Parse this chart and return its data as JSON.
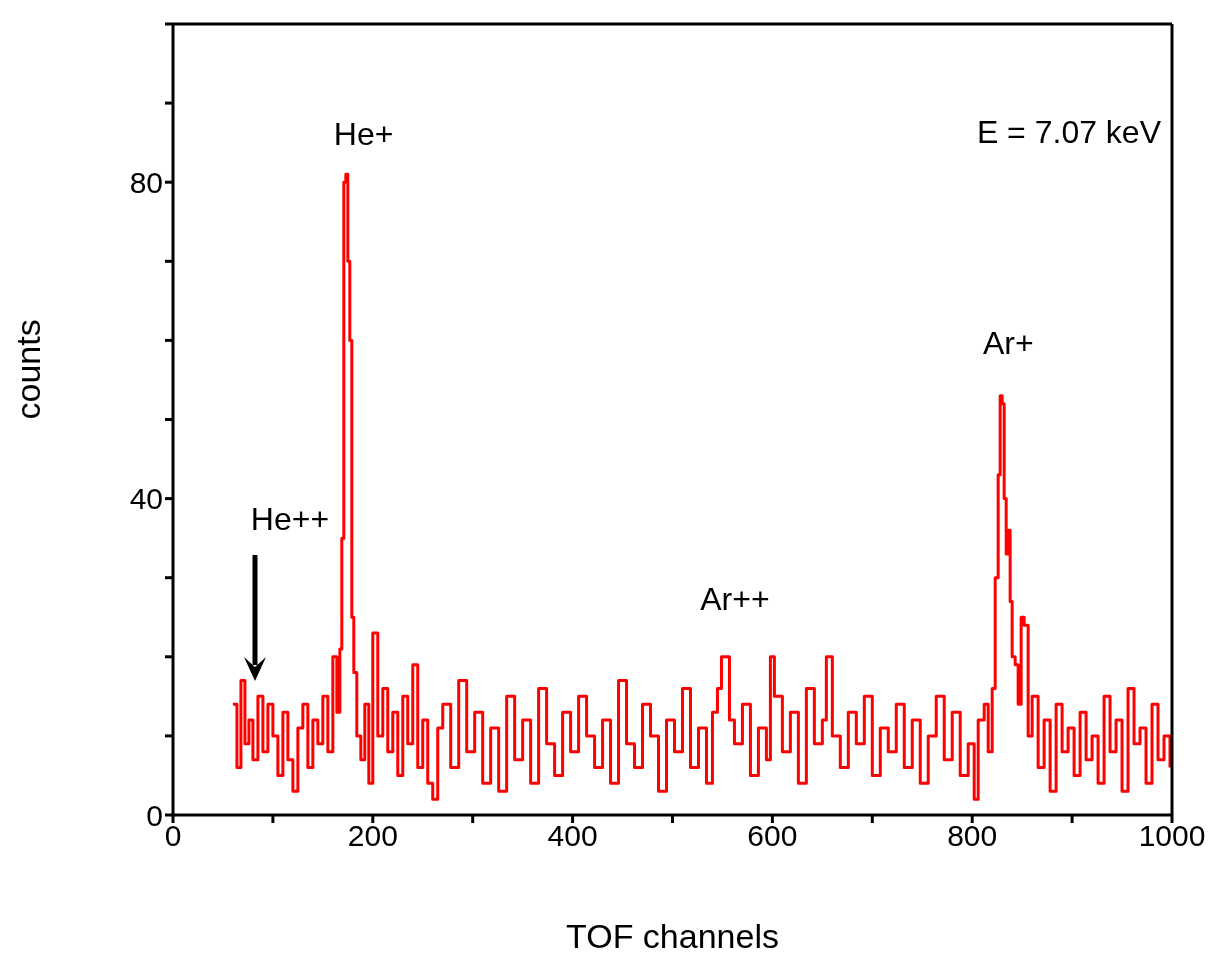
{
  "chart_data": {
    "type": "step",
    "xlabel": "TOF channels",
    "ylabel": "counts",
    "xlim": [
      0,
      1000
    ],
    "ylim": [
      0,
      100
    ],
    "xticks": [
      0,
      {
        "value": 100,
        "label": null
      },
      200,
      {
        "value": 300,
        "label": null
      },
      400,
      {
        "value": 500,
        "label": null
      },
      600,
      {
        "value": 700,
        "label": null
      },
      800,
      {
        "value": 900,
        "label": null
      },
      1000
    ],
    "yticks": [
      0,
      {
        "value": 10,
        "label": null
      },
      {
        "value": 20,
        "label": null
      },
      {
        "value": 30,
        "label": null
      },
      40,
      {
        "value": 50,
        "label": null
      },
      {
        "value": 60,
        "label": null
      },
      {
        "value": 70,
        "label": null
      },
      80,
      {
        "value": 90,
        "label": null
      },
      {
        "value": 100,
        "label": null
      }
    ],
    "x": [
      60,
      64,
      68,
      72,
      76,
      80,
      85,
      90,
      95,
      100,
      105,
      110,
      115,
      120,
      125,
      130,
      135,
      140,
      145,
      150,
      155,
      160,
      164,
      167,
      169,
      171,
      173,
      175,
      177,
      179,
      181,
      184,
      188,
      192,
      196,
      200,
      205,
      210,
      215,
      220,
      225,
      230,
      235,
      240,
      245,
      250,
      255,
      260,
      265,
      270,
      278,
      286,
      294,
      302,
      310,
      318,
      326,
      334,
      342,
      350,
      358,
      366,
      374,
      382,
      390,
      398,
      406,
      414,
      422,
      430,
      438,
      446,
      454,
      462,
      470,
      478,
      486,
      494,
      502,
      510,
      518,
      526,
      534,
      540,
      545,
      549,
      553,
      557,
      562,
      570,
      578,
      586,
      594,
      598,
      602,
      610,
      618,
      626,
      634,
      642,
      650,
      654,
      660,
      668,
      676,
      684,
      692,
      700,
      708,
      716,
      724,
      732,
      740,
      748,
      756,
      764,
      772,
      780,
      788,
      796,
      802,
      806,
      812,
      816,
      820,
      823,
      826,
      828,
      830,
      832,
      834,
      836,
      838,
      840,
      843,
      846,
      849,
      852,
      856,
      860,
      866,
      872,
      878,
      884,
      890,
      896,
      902,
      908,
      914,
      920,
      926,
      932,
      938,
      944,
      950,
      956,
      962,
      968,
      974,
      980,
      986,
      992,
      998
    ],
    "series": [
      {
        "color": "#ff0000",
        "values": [
          14,
          6,
          17,
          9,
          12,
          7,
          15,
          8,
          14,
          10,
          5,
          13,
          7,
          3,
          11,
          14,
          6,
          12,
          9,
          15,
          8,
          20,
          13,
          21,
          35,
          80,
          81,
          70,
          60,
          25,
          18,
          10,
          7,
          14,
          4,
          23,
          10,
          16,
          8,
          13,
          5,
          15,
          9,
          19,
          6,
          12,
          4,
          2,
          11,
          14,
          6,
          17,
          8,
          13,
          4,
          11,
          3,
          15,
          7,
          12,
          4,
          16,
          9,
          5,
          13,
          8,
          15,
          10,
          6,
          12,
          4,
          17,
          9,
          6,
          14,
          10,
          3,
          12,
          8,
          16,
          6,
          11,
          4,
          13,
          16,
          20,
          20,
          12,
          9,
          14,
          5,
          11,
          7,
          20,
          15,
          8,
          13,
          4,
          16,
          9,
          12,
          20,
          10,
          6,
          13,
          9,
          15,
          5,
          11,
          8,
          14,
          6,
          12,
          4,
          10,
          15,
          7,
          13,
          5,
          9,
          2,
          12,
          14,
          8,
          16,
          30,
          43,
          53,
          52,
          40,
          33,
          36,
          27,
          20,
          19,
          14,
          25,
          24,
          10,
          15,
          6,
          12,
          3,
          14,
          8,
          11,
          5,
          13,
          7,
          10,
          4,
          15,
          8,
          12,
          3,
          16,
          9,
          11,
          4,
          14,
          7,
          10,
          6
        ]
      }
    ],
    "annotations": [
      {
        "text": "He+",
        "x": 172,
        "y": 80
      },
      "He++",
      {
        "text": "Ar++",
        "x": 550,
        "y": 20
      },
      {
        "text": "Ar+",
        "x": 828,
        "y": 53
      },
      "E = 7.07 keV"
    ]
  }
}
